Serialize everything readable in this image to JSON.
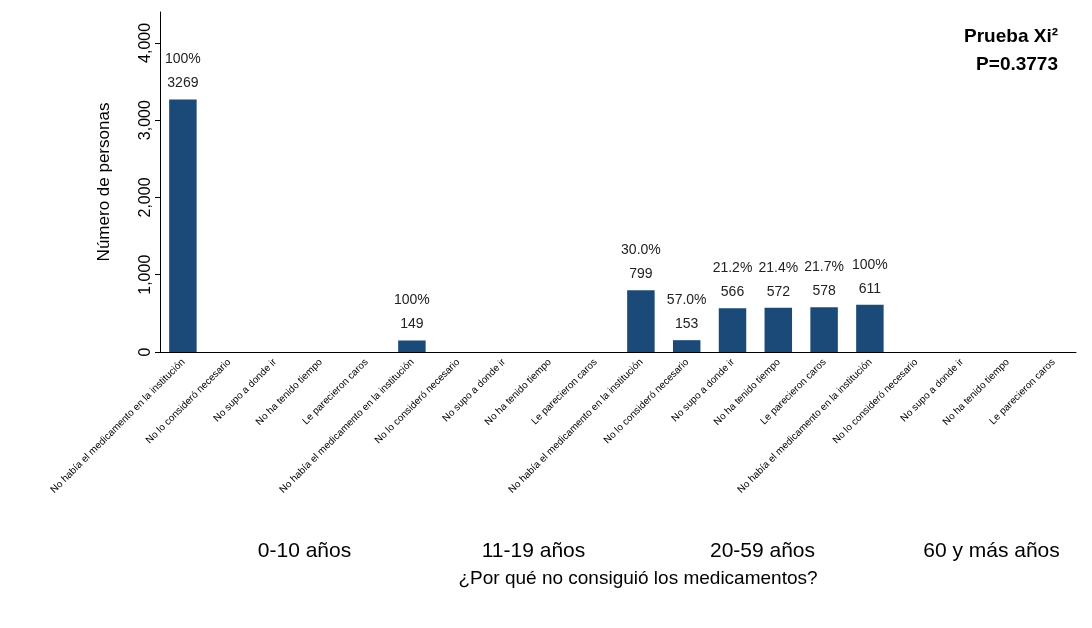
{
  "chart_data": {
    "type": "bar",
    "xlabel": "¿Por qué no consiguió los medicamentos?",
    "ylabel": "Número de personas",
    "categories": [
      "No había el medicamento en la institución",
      "No lo consideró necesario",
      "No supo a donde ir",
      "No ha tenido tiempo",
      "Le parecieron caros",
      "No había el medicamento en la institución",
      "No lo consideró necesario",
      "No supo a donde ir",
      "No ha tenido tiempo",
      "Le parecieron caros",
      "No había el medicamento en la institución",
      "No lo consideró necesario",
      "No supo a donde ir",
      "No ha tenido tiempo",
      "Le parecieron caros",
      "No había el medicamento en la institución",
      "No lo consideró necesario",
      "No supo a donde ir",
      "No ha tenido tiempo",
      "Le parecieron caros"
    ],
    "values": [
      3269,
      0,
      0,
      0,
      0,
      149,
      0,
      0,
      0,
      0,
      799,
      153,
      566,
      572,
      578,
      611,
      0,
      0,
      0,
      0
    ],
    "value_labels": [
      "100%\n3269",
      null,
      null,
      null,
      null,
      "100%\n149",
      null,
      null,
      null,
      null,
      "30.0%\n799",
      "57.0%\n153",
      "21.2%\n566",
      "21.4%\n572",
      "21.7%\n578",
      "100%\n611",
      null,
      null,
      null,
      null
    ],
    "color": "#1b4a78",
    "ylim": [
      0,
      4400
    ],
    "yticks": [
      {
        "value": 0,
        "label": "0"
      },
      {
        "value": 1000,
        "label": "1,000"
      },
      {
        "value": 2000,
        "label": "2,000"
      },
      {
        "value": 3000,
        "label": "3,000"
      },
      {
        "value": 4000,
        "label": "4,000"
      }
    ],
    "grid": false,
    "annotations": [
      "Prueba Xi²",
      "P=0.3773",
      "0-10 años",
      "11-19 años",
      "20-59 años",
      "60 y más años"
    ]
  }
}
